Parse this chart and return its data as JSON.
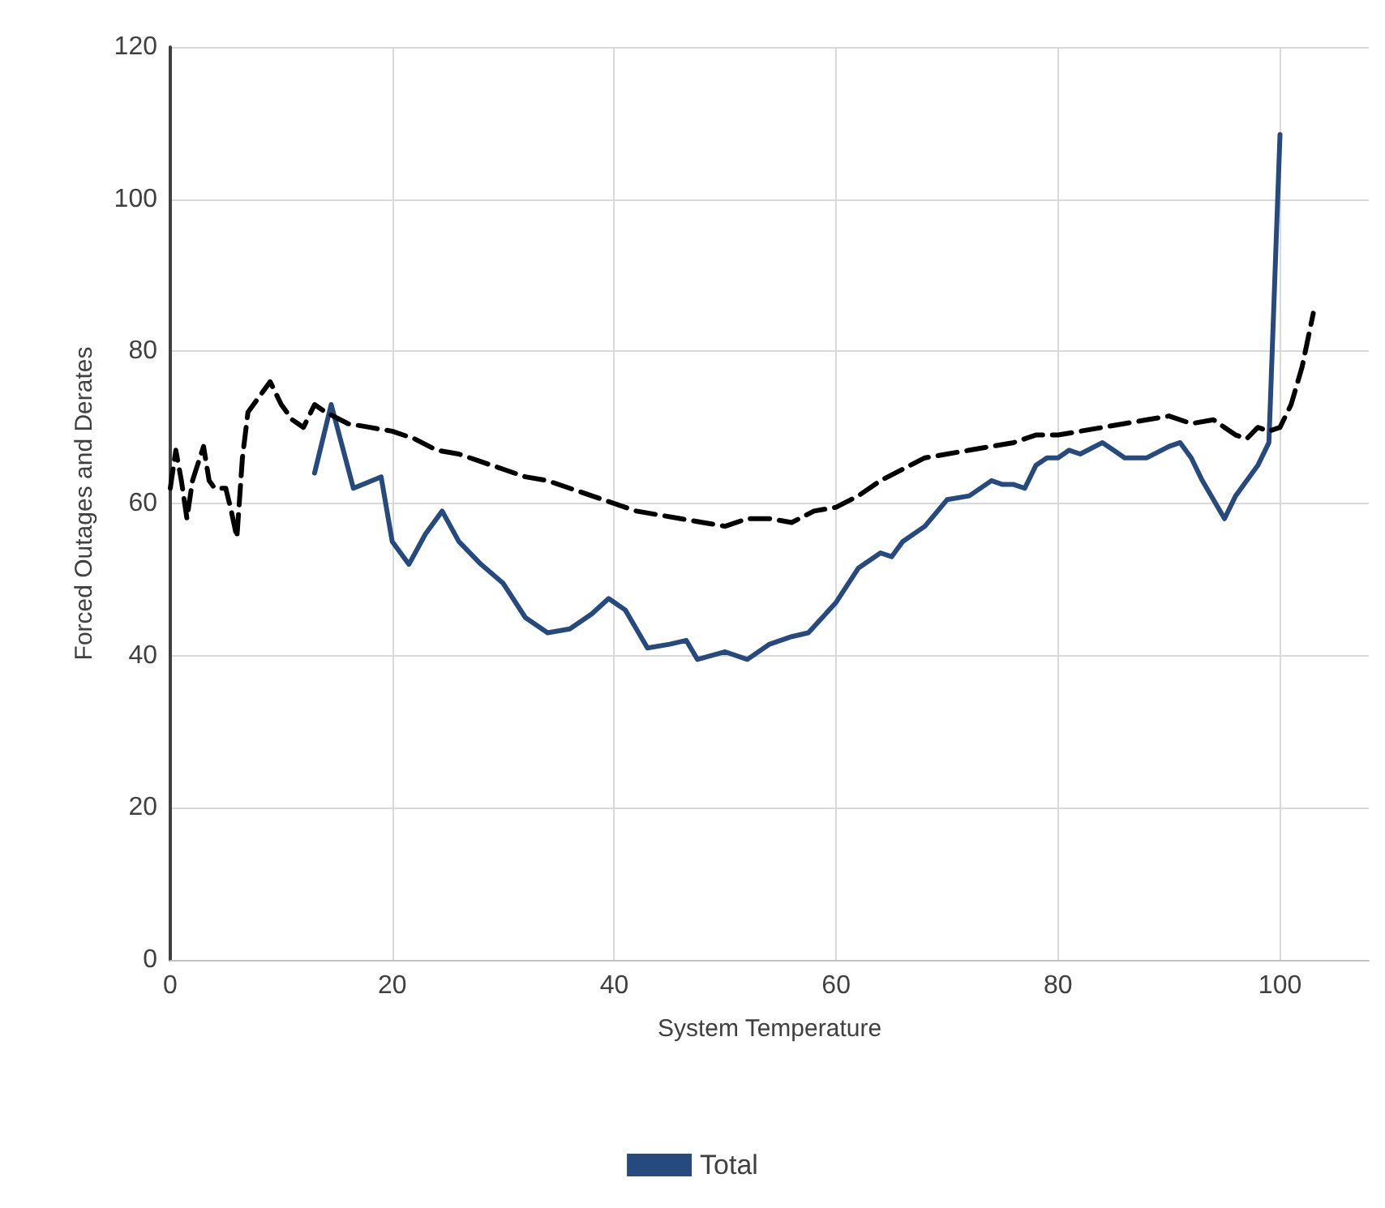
{
  "chart_data": {
    "type": "line",
    "xlabel": "System Temperature",
    "ylabel": "Forced Outages and Derates",
    "xlim": [
      0,
      108
    ],
    "xticks": [
      0,
      20,
      40,
      60,
      80,
      100
    ],
    "ylim": [
      0,
      120
    ],
    "yticks": [
      0,
      20,
      40,
      60,
      80,
      100,
      120
    ],
    "grid": true,
    "legend": "bottom",
    "marker": "none",
    "series": [
      {
        "name": "Total",
        "color": "#264a7e",
        "line_style": "solid",
        "x": [
          13,
          14.5,
          16.5,
          19,
          20,
          21.5,
          23,
          24.5,
          26,
          28,
          30,
          32,
          34,
          36,
          38,
          39.5,
          41,
          43,
          45,
          46.5,
          47.5,
          50,
          52,
          54,
          56,
          57.5,
          60,
          62,
          64,
          65,
          66,
          68,
          70,
          72,
          74,
          75,
          76,
          77,
          78,
          79,
          80,
          81,
          82,
          84,
          85,
          86,
          88,
          90,
          91,
          92,
          93,
          95,
          96,
          98,
          99,
          100
        ],
        "values": [
          64,
          73,
          62,
          63.5,
          55,
          52,
          56,
          59,
          55,
          52,
          49.5,
          45,
          43,
          43.5,
          45.5,
          47.5,
          46,
          41,
          41.5,
          42,
          39.5,
          40.5,
          39.5,
          41.5,
          42.5,
          43,
          47,
          51.5,
          53.5,
          53,
          55,
          57,
          60.5,
          61,
          63,
          62.5,
          62.5,
          62,
          65,
          66,
          66,
          67,
          66.5,
          68,
          67,
          66,
          66,
          67.5,
          68,
          66,
          63,
          58,
          61,
          65,
          68,
          108.5
        ]
      },
      {
        "color": "#000000",
        "line_style": "dashed",
        "x": [
          0,
          0.5,
          1,
          1.5,
          2,
          3,
          3.5,
          4,
          5,
          5.5,
          6,
          6.5,
          7,
          9,
          10,
          11,
          12,
          13,
          14,
          16,
          18,
          20,
          22,
          24,
          26,
          28,
          30,
          32,
          34,
          36,
          38,
          40,
          42,
          44,
          46,
          48,
          50,
          52,
          54,
          56,
          58,
          60,
          62,
          64,
          66,
          68,
          70,
          72,
          74,
          76,
          78,
          80,
          82,
          84,
          86,
          88,
          90,
          92,
          94,
          95,
          96,
          97,
          98,
          99,
          100,
          101,
          102,
          103
        ],
        "values": [
          62,
          67,
          63,
          58,
          63,
          67.5,
          63,
          62,
          62,
          59,
          55.5,
          66,
          72,
          76,
          73,
          71,
          70,
          73,
          72,
          70.5,
          70,
          69.5,
          68.5,
          67,
          66.5,
          65.5,
          64.5,
          63.5,
          63,
          62,
          61,
          60,
          59,
          58.5,
          58,
          57.5,
          57,
          58,
          58,
          57.5,
          59,
          59.5,
          61,
          63,
          64.5,
          66,
          66.5,
          67,
          67.5,
          68,
          69,
          69,
          69.5,
          70,
          70.5,
          71,
          71.5,
          70.5,
          71,
          70,
          69,
          68.5,
          70,
          69.5,
          70,
          73,
          78,
          85
        ]
      }
    ]
  }
}
